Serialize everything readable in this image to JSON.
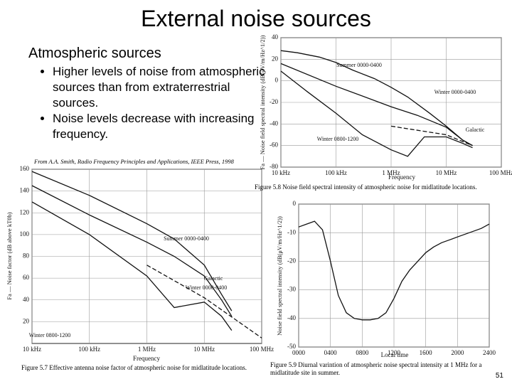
{
  "title": "External noise sources",
  "subtitle": "Atmospheric sources",
  "bullets": [
    "Higher levels of noise from atmospheric sources than from extraterrestrial sources.",
    "Noise levels decrease with increasing frequency."
  ],
  "source": "From A.A. Smith, Radio Frequency Principles and Applications, IEEE Press, 1998",
  "page_number": "51",
  "chart_data": [
    {
      "type": "line",
      "caption": "Figure 5.8 Noise field spectral intensity of atmospheric noise for midlatitude locations.",
      "xlabel": "Frequency",
      "ylabel": "Fa — Noise field spectral intensity (dB(μV/m/Hz^1/2))",
      "log_x": true,
      "grid": true,
      "xlim": [
        10,
        100000
      ],
      "xticks": [
        {
          "value": 10,
          "label": "10 kHz"
        },
        {
          "value": 100,
          "label": "100 kHz"
        },
        {
          "value": 1000,
          "label": "1 MHz"
        },
        {
          "value": 10000,
          "label": "10 MHz"
        },
        {
          "value": 100000,
          "label": "100 MHz"
        }
      ],
      "ylim": [
        -80,
        40
      ],
      "yticks": [
        -80,
        -60,
        -40,
        -20,
        0,
        20,
        40
      ],
      "series": [
        {
          "name": "Summer 0000-0400",
          "color": "#111111",
          "x": [
            10,
            20,
            50,
            100,
            200,
            500,
            1000,
            2000,
            5000,
            10000,
            20000,
            30000
          ],
          "values": [
            28,
            26,
            22,
            17,
            10,
            2,
            -6,
            -15,
            -30,
            -42,
            -55,
            -60
          ]
        },
        {
          "name": "Winter 0000-0400",
          "color": "#111111",
          "x": [
            10,
            100,
            1000,
            3000,
            10000,
            20000,
            30000
          ],
          "values": [
            16,
            -5,
            -24,
            -32,
            -43,
            -55,
            -60
          ]
        },
        {
          "name": "Winter 0800-1200",
          "color": "#111111",
          "x": [
            10,
            30,
            100,
            300,
            1000,
            2000,
            4000,
            10000,
            20000,
            30000
          ],
          "values": [
            9,
            -10,
            -30,
            -50,
            -64,
            -70,
            -52,
            -52,
            -58,
            -62
          ]
        },
        {
          "name": "Galactic",
          "color": "#111111",
          "dashed": true,
          "x": [
            1000,
            10000,
            30000
          ],
          "values": [
            -42,
            -50,
            -60
          ]
        }
      ]
    },
    {
      "type": "line",
      "caption": "Figure 5.7 Effective antenna noise factor of atmospheric noise for midlatitude locations.",
      "xlabel": "Frequency",
      "ylabel": "Fa — Noise factor (dB above kT0b)",
      "log_x": true,
      "grid": true,
      "xlim": [
        10,
        100000
      ],
      "xticks": [
        {
          "value": 10,
          "label": "10 kHz"
        },
        {
          "value": 100,
          "label": "100 kHz"
        },
        {
          "value": 1000,
          "label": "1 MHz"
        },
        {
          "value": 10000,
          "label": "10 MHz"
        },
        {
          "value": 100000,
          "label": "100 MHz"
        }
      ],
      "ylim": [
        0,
        160
      ],
      "yticks": [
        20,
        40,
        60,
        80,
        100,
        120,
        140,
        160
      ],
      "series": [
        {
          "name": "Summer 0000-0400",
          "color": "#111111",
          "x": [
            10,
            100,
            1000,
            3000,
            10000,
            20000,
            30000
          ],
          "values": [
            158,
            136,
            110,
            96,
            72,
            45,
            30
          ]
        },
        {
          "name": "Winter 0000-0400",
          "color": "#111111",
          "x": [
            10,
            100,
            1000,
            3000,
            10000,
            20000,
            30000
          ],
          "values": [
            145,
            118,
            93,
            80,
            62,
            40,
            25
          ]
        },
        {
          "name": "Winter 0800-1200",
          "color": "#111111",
          "x": [
            10,
            100,
            1000,
            3000,
            10000,
            20000,
            30000
          ],
          "values": [
            130,
            100,
            62,
            33,
            38,
            25,
            12
          ]
        },
        {
          "name": "Galactic",
          "color": "#111111",
          "dashed": true,
          "x": [
            1000,
            10000,
            100000
          ],
          "values": [
            72,
            42,
            5
          ]
        }
      ]
    },
    {
      "type": "line",
      "caption": "Figure 5.9 Diurnal varintion of atmospheric noise spectral intensity at 1 MHz for a midlatitude site in summer.",
      "xlabel": "Local time",
      "ylabel": "Noise field spectral intensity (dB(μV/m/Hz^1/2))",
      "log_x": false,
      "grid": true,
      "xlim": [
        0,
        24
      ],
      "xticks": [
        {
          "value": 0,
          "label": "0000"
        },
        {
          "value": 4,
          "label": "0400"
        },
        {
          "value": 8,
          "label": "0800"
        },
        {
          "value": 12,
          "label": "1200"
        },
        {
          "value": 16,
          "label": "1600"
        },
        {
          "value": 20,
          "label": "2000"
        },
        {
          "value": 24,
          "label": "2400"
        }
      ],
      "ylim": [
        -50,
        0
      ],
      "yticks": [
        -50,
        -40,
        -30,
        -20,
        -10,
        0
      ],
      "series": [
        {
          "name": null,
          "color": "#111111",
          "x": [
            0,
            1,
            2,
            3,
            4,
            5,
            6,
            7,
            8,
            9,
            10,
            11,
            12,
            13,
            14,
            15,
            16,
            17,
            18,
            19,
            20,
            21,
            22,
            23,
            24
          ],
          "values": [
            -8,
            -7,
            -6,
            -9,
            -20,
            -32,
            -38,
            -40,
            -40.5,
            -40.5,
            -40,
            -38,
            -33,
            -27,
            -23,
            -20,
            -17,
            -15,
            -13.5,
            -12.5,
            -11.5,
            -10.5,
            -9.5,
            -8.5,
            -7
          ]
        }
      ]
    }
  ]
}
